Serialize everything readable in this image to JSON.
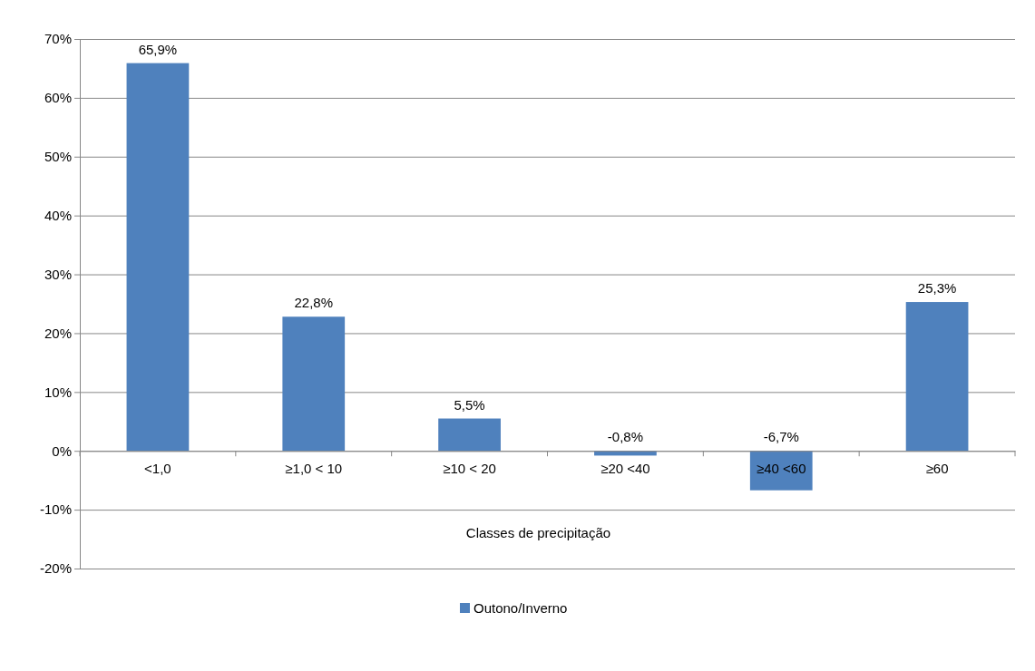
{
  "chart_data": {
    "type": "bar",
    "xlabel": "Classes de precipitação",
    "categories": [
      "<1,0",
      "≥1,0 < 10",
      "≥10 < 20",
      "≥20 <40",
      "≥40 <60",
      "≥60"
    ],
    "series": [
      {
        "name": "Outono/Inverno",
        "color": "#4f81bd",
        "values": [
          65.9,
          22.8,
          5.5,
          -0.8,
          -6.7,
          25.3
        ],
        "value_labels": [
          "65,9%",
          "22,8%",
          "5,5%",
          "-0,8%",
          "-6,7%",
          "25,3%"
        ]
      }
    ],
    "ylim": [
      -20,
      70
    ],
    "yticks": [
      {
        "value": -20,
        "label": "-20%"
      },
      {
        "value": -10,
        "label": "-10%"
      },
      {
        "value": 0,
        "label": "0%"
      },
      {
        "value": 10,
        "label": "10%"
      },
      {
        "value": 20,
        "label": "20%"
      },
      {
        "value": 30,
        "label": "30%"
      },
      {
        "value": 40,
        "label": "40%"
      },
      {
        "value": 50,
        "label": "50%"
      },
      {
        "value": 60,
        "label": "60%"
      },
      {
        "value": 70,
        "label": "70%"
      }
    ],
    "grid": "y",
    "legend": "bottom"
  }
}
